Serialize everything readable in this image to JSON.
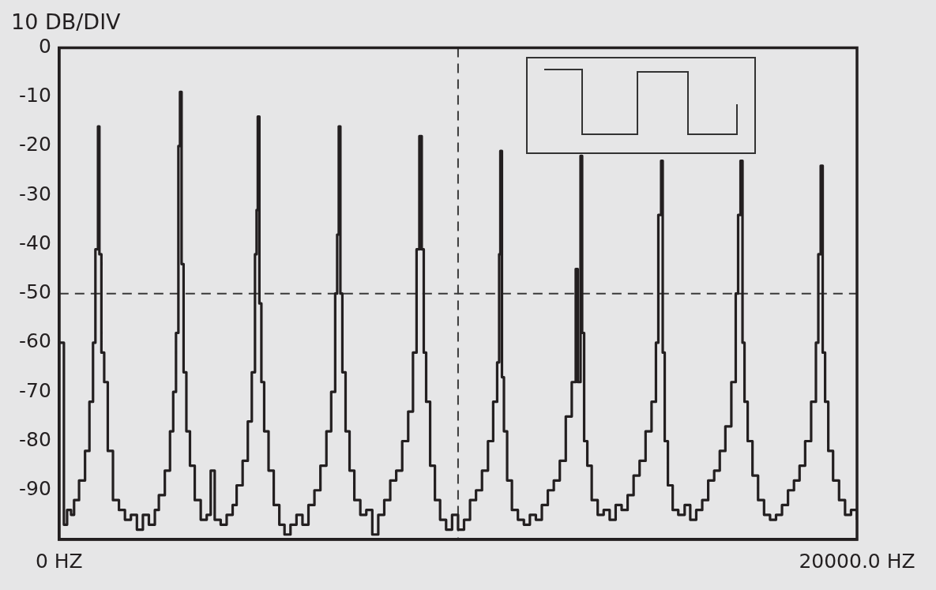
{
  "chart_data": {
    "type": "step",
    "title": "10 DB/DIV",
    "xlim": [
      0,
      20000
    ],
    "xticks": [
      {
        "value": 0,
        "label": "0 HZ"
      },
      {
        "value": 20000,
        "label": "20000.0 HZ"
      }
    ],
    "ylim": [
      -100,
      0
    ],
    "yticks": [
      0,
      -10,
      -20,
      -30,
      -40,
      -50,
      -60,
      -70,
      -80,
      -90
    ],
    "grid": false,
    "legend": false,
    "marker": "none",
    "line_style": "solid",
    "ref_lines": [
      {
        "axis": "y",
        "value": -50,
        "color": "#3a3a3a",
        "line_style": "dashed"
      },
      {
        "axis": "x",
        "value": 10000,
        "color": "#3a3a3a",
        "line_style": "dashed"
      }
    ],
    "series": [
      {
        "color": "#231f20",
        "x": [
          0,
          120,
          200,
          300,
          375,
          500,
          650,
          760,
          850,
          910,
          975,
          1010,
          1060,
          1130,
          1220,
          1350,
          1500,
          1650,
          1800,
          1950,
          2100,
          2250,
          2400,
          2500,
          2650,
          2780,
          2860,
          2930,
          2990,
          3030,
          3070,
          3120,
          3190,
          3280,
          3400,
          3550,
          3700,
          3800,
          3900,
          4050,
          4200,
          4350,
          4450,
          4600,
          4730,
          4830,
          4910,
          4950,
          4980,
          5020,
          5070,
          5140,
          5250,
          5380,
          5520,
          5650,
          5800,
          5950,
          6100,
          6250,
          6400,
          6550,
          6700,
          6820,
          6920,
          6970,
          7010,
          7050,
          7100,
          7180,
          7280,
          7400,
          7550,
          7700,
          7850,
          8000,
          8150,
          8300,
          8450,
          8600,
          8750,
          8870,
          8960,
          9000,
          9030,
          9090,
          9140,
          9200,
          9300,
          9420,
          9550,
          9700,
          9850,
          10000,
          10150,
          10300,
          10450,
          10600,
          10750,
          10880,
          10980,
          11030,
          11060,
          11100,
          11150,
          11230,
          11350,
          11500,
          11650,
          11800,
          11950,
          12100,
          12250,
          12400,
          12550,
          12700,
          12850,
          12950,
          13000,
          13070,
          13110,
          13160,
          13240,
          13350,
          13500,
          13650,
          13800,
          13950,
          14100,
          14250,
          14400,
          14550,
          14700,
          14850,
          14960,
          15020,
          15090,
          15130,
          15180,
          15260,
          15380,
          15520,
          15680,
          15820,
          15970,
          16120,
          16270,
          16420,
          16560,
          16700,
          16850,
          16960,
          17020,
          17080,
          17130,
          17180,
          17260,
          17380,
          17520,
          17670,
          17820,
          17970,
          18120,
          18270,
          18420,
          18560,
          18700,
          18850,
          18970,
          19030,
          19090,
          19140,
          19200,
          19280,
          19400,
          19550,
          19700,
          19850,
          20000
        ],
        "values": [
          -60,
          -97,
          -94,
          -95,
          -92,
          -88,
          -82,
          -72,
          -60,
          -41,
          -16,
          -42,
          -62,
          -68,
          -82,
          -92,
          -94,
          -96,
          -95,
          -98,
          -95,
          -97,
          -94,
          -91,
          -86,
          -78,
          -70,
          -58,
          -20,
          -9,
          -44,
          -66,
          -78,
          -85,
          -92,
          -96,
          -95,
          -86,
          -96,
          -97,
          -95,
          -93,
          -89,
          -84,
          -76,
          -66,
          -42,
          -33,
          -14,
          -52,
          -68,
          -78,
          -86,
          -93,
          -97,
          -99,
          -97,
          -95,
          -97,
          -93,
          -90,
          -85,
          -78,
          -70,
          -50,
          -38,
          -16,
          -50,
          -66,
          -78,
          -86,
          -92,
          -95,
          -94,
          -99,
          -95,
          -92,
          -88,
          -86,
          -80,
          -74,
          -62,
          -41,
          -41,
          -18,
          -41,
          -62,
          -72,
          -85,
          -92,
          -96,
          -98,
          -95,
          -98,
          -96,
          -92,
          -90,
          -86,
          -80,
          -72,
          -64,
          -42,
          -21,
          -67,
          -78,
          -88,
          -94,
          -96,
          -97,
          -95,
          -96,
          -93,
          -90,
          -88,
          -84,
          -75,
          -68,
          -45,
          -68,
          -22,
          -58,
          -80,
          -85,
          -92,
          -95,
          -94,
          -96,
          -93,
          -94,
          -91,
          -87,
          -84,
          -78,
          -72,
          -60,
          -34,
          -23,
          -62,
          -80,
          -89,
          -94,
          -95,
          -93,
          -96,
          -94,
          -92,
          -88,
          -86,
          -82,
          -77,
          -68,
          -50,
          -34,
          -23,
          -60,
          -72,
          -80,
          -87,
          -92,
          -95,
          -96,
          -95,
          -93,
          -90,
          -88,
          -85,
          -80,
          -72,
          -60,
          -42,
          -24,
          -62,
          -72,
          -82,
          -88,
          -92,
          -95,
          -94,
          -96
        ]
      }
    ]
  }
}
